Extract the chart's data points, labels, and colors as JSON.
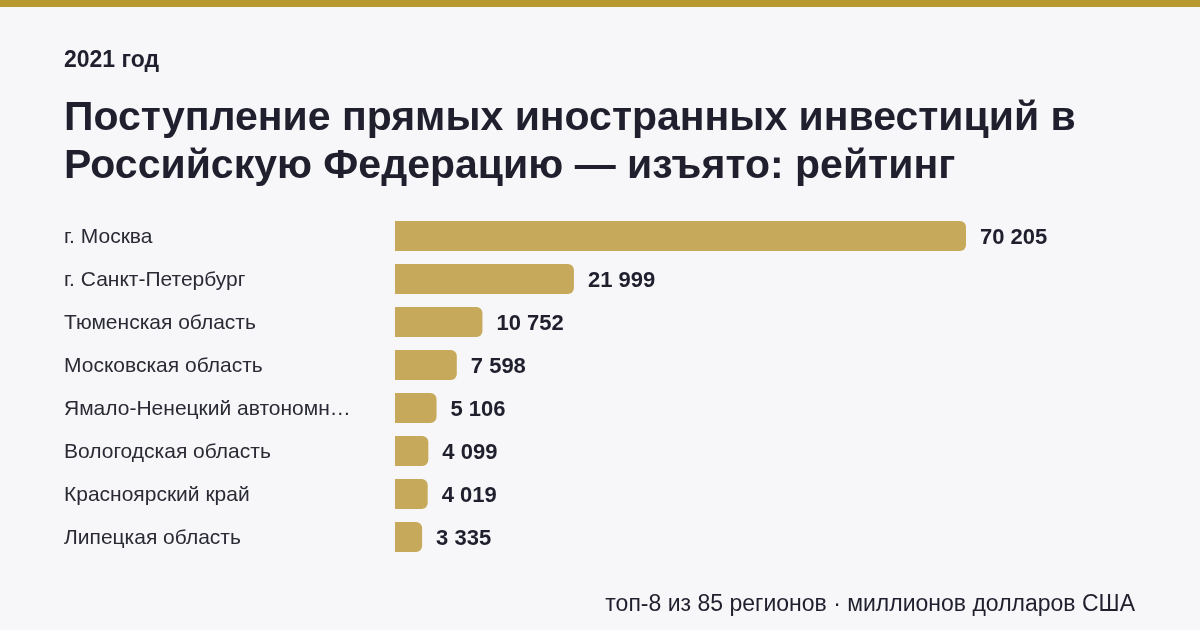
{
  "chart_data": {
    "type": "bar",
    "orientation": "horizontal",
    "subtitle": "2021 год",
    "title": "Поступление прямых иностранных инвестиций в Российскую Федерацию — изъято: рейтинг",
    "categories": [
      "г. Москва",
      "г. Санкт-Петербург",
      "Тюменская область",
      "Московская область",
      "Ямало-Ненецкий автономн…",
      "Вологодская область",
      "Красноярский край",
      "Липецкая область"
    ],
    "values": [
      70205,
      21999,
      10752,
      7598,
      5106,
      4099,
      4019,
      3335
    ],
    "value_labels": [
      "70 205",
      "21 999",
      "10 752",
      "7 598",
      "5 106",
      "4 099",
      "4 019",
      "3 335"
    ],
    "color": "#c6a95a",
    "annotations": [
      "топ-8 из 85 регионов · миллионов долларов США"
    ]
  }
}
